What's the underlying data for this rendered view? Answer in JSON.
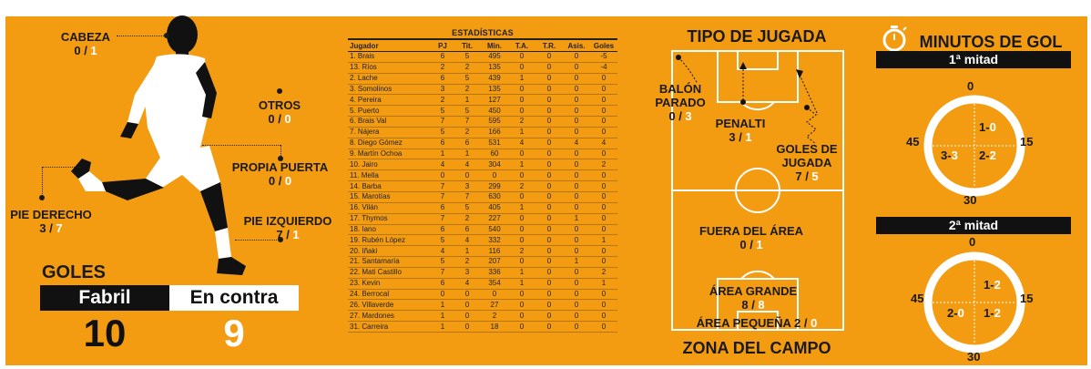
{
  "body_parts": {
    "head": {
      "label": "CABEZA",
      "for": "0",
      "against": "1"
    },
    "other": {
      "label": "OTROS",
      "for": "0",
      "against": "0"
    },
    "own_goal": {
      "label": "PROPIA PUERTA",
      "for": "0",
      "against": "0"
    },
    "right_foot": {
      "label": "PIE DERECHO",
      "for": "3",
      "against": "7"
    },
    "left_foot": {
      "label": "PIE IZQUIERDO",
      "for": "7",
      "against": "1"
    }
  },
  "goals": {
    "title": "GOLES",
    "for_label": "Fabril",
    "against_label": "En contra",
    "for_value": "10",
    "against_value": "9"
  },
  "stats": {
    "title": "ESTADÍSTICAS",
    "columns": [
      "Jugador",
      "PJ",
      "Tit.",
      "Min.",
      "T.A.",
      "T.R.",
      "Asis.",
      "Goles"
    ],
    "rows": [
      [
        "1. Brais",
        "6",
        "5",
        "495",
        "0",
        "0",
        "0",
        "-5"
      ],
      [
        "13. Ríos",
        "2",
        "2",
        "135",
        "0",
        "0",
        "0",
        "-4"
      ],
      [
        "2. Lache",
        "6",
        "5",
        "439",
        "1",
        "0",
        "0",
        "0"
      ],
      [
        "3. Somolinos",
        "3",
        "2",
        "135",
        "0",
        "0",
        "0",
        "0"
      ],
      [
        "4. Pereira",
        "2",
        "1",
        "127",
        "0",
        "0",
        "0",
        "0"
      ],
      [
        "5. Puerto",
        "5",
        "5",
        "450",
        "0",
        "0",
        "0",
        "0"
      ],
      [
        "6. Brais Val",
        "7",
        "7",
        "595",
        "2",
        "0",
        "0",
        "0"
      ],
      [
        "7. Nájera",
        "5",
        "2",
        "166",
        "1",
        "0",
        "0",
        "0"
      ],
      [
        "8. Diego Gómez",
        "6",
        "6",
        "531",
        "4",
        "0",
        "4",
        "4"
      ],
      [
        "9. Martín Ochoa",
        "1",
        "1",
        "60",
        "0",
        "0",
        "0",
        "0"
      ],
      [
        "10. Jairo",
        "4",
        "4",
        "304",
        "1",
        "0",
        "0",
        "2"
      ],
      [
        "11. Mella",
        "0",
        "0",
        "0",
        "0",
        "0",
        "0",
        "0"
      ],
      [
        "14. Barba",
        "7",
        "3",
        "299",
        "2",
        "0",
        "0",
        "0"
      ],
      [
        "15. Marotías",
        "7",
        "7",
        "630",
        "0",
        "0",
        "0",
        "0"
      ],
      [
        "16. Vilán",
        "6",
        "5",
        "405",
        "1",
        "0",
        "0",
        "0"
      ],
      [
        "17. Thymos",
        "7",
        "2",
        "227",
        "0",
        "0",
        "1",
        "0"
      ],
      [
        "18. Iano",
        "6",
        "6",
        "540",
        "0",
        "0",
        "0",
        "0"
      ],
      [
        "19. Rubén López",
        "5",
        "4",
        "332",
        "0",
        "0",
        "0",
        "1"
      ],
      [
        "20. Iñaki",
        "4",
        "1",
        "116",
        "2",
        "0",
        "0",
        "0"
      ],
      [
        "21. Santamaría",
        "5",
        "2",
        "207",
        "0",
        "0",
        "1",
        "0"
      ],
      [
        "22. Mati Castillo",
        "7",
        "3",
        "336",
        "1",
        "0",
        "0",
        "2"
      ],
      [
        "23. Kevin",
        "6",
        "4",
        "354",
        "1",
        "0",
        "0",
        "1"
      ],
      [
        "24. Berrocal",
        "0",
        "0",
        "0",
        "0",
        "0",
        "0",
        "0"
      ],
      [
        "26. Villaverde",
        "1",
        "0",
        "27",
        "0",
        "0",
        "0",
        "0"
      ],
      [
        "27. Mardones",
        "1",
        "0",
        "2",
        "0",
        "0",
        "0",
        "0"
      ],
      [
        "31. Carreira",
        "1",
        "0",
        "18",
        "0",
        "0",
        "0",
        "0"
      ]
    ]
  },
  "play_type": {
    "title": "TIPO DE JUGADA",
    "set_piece": {
      "label1": "BALÓN",
      "label2": "PARADO",
      "for": "0",
      "against": "3"
    },
    "penalty": {
      "label": "PENALTI",
      "for": "3",
      "against": "1"
    },
    "open_play": {
      "label1": "GOLES DE",
      "label2": "JUGADA",
      "for": "7",
      "against": "5"
    }
  },
  "field_zone": {
    "title": "ZONA DEL CAMPO",
    "outside": {
      "label": "FUERA DEL ÁREA",
      "for": "0",
      "against": "1"
    },
    "big_area": {
      "label": "ÁREA GRANDE",
      "for": "8",
      "against": "8"
    },
    "small_area": {
      "label": "ÁREA PEQUEÑA",
      "for": "2",
      "against": "0"
    }
  },
  "minutes": {
    "title": "MINUTOS DE GOL",
    "first_half": {
      "title": "1ª mitad",
      "ticks": {
        "top": "0",
        "right": "15",
        "bottom": "30",
        "left": "45"
      },
      "q1": {
        "for": "1",
        "against": "0"
      },
      "q2": {
        "for": "2",
        "against": "2"
      },
      "q3": {
        "for": "3",
        "against": "3"
      }
    },
    "second_half": {
      "title": "2ª mitad",
      "ticks": {
        "top": "0",
        "right": "15",
        "bottom": "30",
        "left": "45"
      },
      "q1": {
        "for": "1",
        "against": "2"
      },
      "q2": {
        "for": "1",
        "against": "2"
      },
      "q3": {
        "for": "2",
        "against": "0"
      }
    }
  },
  "colors": {
    "background": "#F39C12",
    "dark": "#111111",
    "light": "#ffffff"
  },
  "chart_data": [
    {
      "type": "table",
      "title": "ESTADÍSTICAS",
      "columns": [
        "Jugador",
        "PJ",
        "Tit.",
        "Min.",
        "T.A.",
        "T.R.",
        "Asis.",
        "Goles"
      ],
      "rows": "see stats.rows"
    },
    {
      "type": "bar",
      "title": "GOLES",
      "categories": [
        "Fabril",
        "En contra"
      ],
      "values": [
        10,
        9
      ]
    }
  ]
}
